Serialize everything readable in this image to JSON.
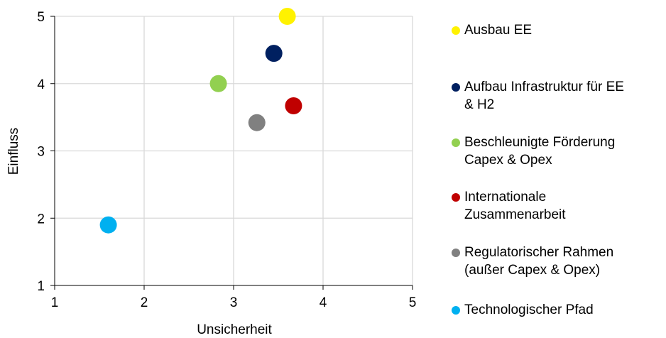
{
  "chart_data": {
    "type": "scatter",
    "title": "",
    "xlabel": "Unsicherheit",
    "ylabel": "Einfluss",
    "xlim": [
      1,
      5
    ],
    "ylim": [
      1,
      5
    ],
    "xticks": [
      "1",
      "2",
      "3",
      "4",
      "5"
    ],
    "yticks": [
      "1",
      "2",
      "3",
      "4",
      "5"
    ],
    "grid": true,
    "legend_position": "right",
    "series": [
      {
        "name": "Ausbau EE",
        "color": "#FFF200",
        "x": 3.6,
        "y": 5.0
      },
      {
        "name": "Aufbau Infrastruktur für EE\n& H2",
        "color": "#002060",
        "x": 3.45,
        "y": 4.45
      },
      {
        "name": "Beschleunigte Förderung\nCapex & Opex",
        "color": "#92D050",
        "x": 2.83,
        "y": 4.0
      },
      {
        "name": "Internationale\nZusammenarbeit",
        "color": "#C00000",
        "x": 3.67,
        "y": 3.67
      },
      {
        "name": "Regulatorischer Rahmen\n(außer Capex & Opex)",
        "color": "#808080",
        "x": 3.26,
        "y": 3.42
      },
      {
        "name": "Technologischer Pfad",
        "color": "#00B0F0",
        "x": 1.6,
        "y": 1.9
      }
    ]
  }
}
